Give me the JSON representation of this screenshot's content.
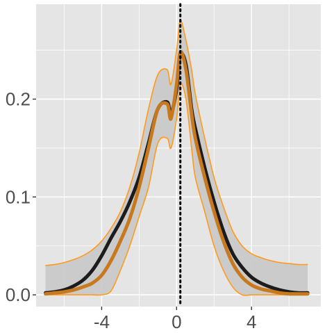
{
  "chart_data": {
    "type": "line",
    "title": "",
    "xlabel": "",
    "ylabel": "",
    "xlim": [
      -7.5,
      7.7
    ],
    "ylim": [
      -0.012,
      0.297
    ],
    "x_ticks": [
      -4,
      0,
      4
    ],
    "x_tick_labels": [
      "-4",
      "0",
      "4"
    ],
    "y_ticks": [
      0.0,
      0.1,
      0.2
    ],
    "y_tick_labels": [
      "0.0",
      "0.1",
      "0.2"
    ],
    "grid": true,
    "legend": "none",
    "vline": {
      "x": 0.2,
      "style": "dotted",
      "color": "#000000"
    },
    "colors": {
      "panel": "#e5e5e5",
      "grid": "#ffffff",
      "band_fill": "#c8c8c8",
      "band_edge": "#ff9a1a",
      "orange_series": "#c8791e",
      "black_series": "#1c1c1c"
    },
    "x": [
      -7.0,
      -6.5,
      -6.0,
      -5.5,
      -5.0,
      -4.5,
      -4.0,
      -3.5,
      -3.0,
      -2.5,
      -2.0,
      -1.5,
      -1.0,
      -0.5,
      -0.3,
      0.0,
      0.2,
      0.5,
      0.8,
      1.0,
      1.5,
      2.0,
      2.5,
      3.0,
      3.5,
      4.0,
      4.5,
      5.0,
      5.5,
      6.0,
      6.5,
      7.0
    ],
    "series": [
      {
        "values": [
          0.002,
          0.003,
          0.005,
          0.009,
          0.015,
          0.025,
          0.04,
          0.058,
          0.075,
          0.095,
          0.12,
          0.155,
          0.19,
          0.197,
          0.185,
          0.21,
          0.245,
          0.235,
          0.19,
          0.17,
          0.13,
          0.095,
          0.065,
          0.042,
          0.028,
          0.018,
          0.012,
          0.008,
          0.005,
          0.003,
          0.002,
          0.002
        ]
      },
      {
        "values": [
          0.001,
          0.002,
          0.003,
          0.005,
          0.008,
          0.012,
          0.02,
          0.035,
          0.055,
          0.078,
          0.11,
          0.15,
          0.19,
          0.195,
          0.18,
          0.215,
          0.248,
          0.23,
          0.185,
          0.16,
          0.12,
          0.085,
          0.055,
          0.032,
          0.018,
          0.01,
          0.006,
          0.004,
          0.002,
          0.001,
          0.001,
          0.001
        ]
      }
    ],
    "band": {
      "upper": [
        0.03,
        0.031,
        0.033,
        0.036,
        0.04,
        0.046,
        0.055,
        0.068,
        0.085,
        0.11,
        0.145,
        0.19,
        0.225,
        0.23,
        0.215,
        0.25,
        0.28,
        0.26,
        0.23,
        0.205,
        0.16,
        0.12,
        0.09,
        0.065,
        0.05,
        0.042,
        0.038,
        0.035,
        0.033,
        0.032,
        0.031,
        0.031
      ],
      "lower": [
        0.0,
        0.0,
        0.0,
        0.0,
        0.0,
        0.0,
        0.0,
        0.004,
        0.025,
        0.05,
        0.08,
        0.11,
        0.155,
        0.16,
        0.15,
        0.18,
        0.215,
        0.2,
        0.15,
        0.12,
        0.085,
        0.05,
        0.025,
        0.008,
        0.0,
        0.0,
        0.0,
        0.0,
        0.0,
        0.0,
        0.0,
        0.0
      ]
    }
  }
}
